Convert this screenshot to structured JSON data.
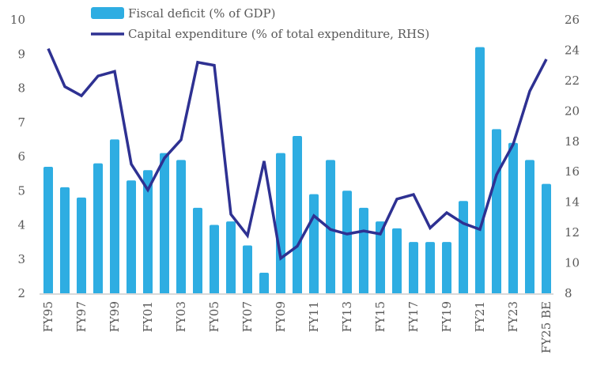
{
  "chart_data": {
    "type": "bar+line",
    "title": "",
    "categories": [
      "FY95",
      "FY96",
      "FY97",
      "FY98",
      "FY99",
      "FY00",
      "FY01",
      "FY02",
      "FY03",
      "FY04",
      "FY05",
      "FY06",
      "FY07",
      "FY08",
      "FY09",
      "FY10",
      "FY11",
      "FY12",
      "FY13",
      "FY14",
      "FY15",
      "FY16",
      "FY17",
      "FY18",
      "FY19",
      "FY20",
      "FY21",
      "FY22",
      "FY23",
      "FY24",
      "FY25 BE"
    ],
    "x_tick_labels": [
      "FY95",
      "FY97",
      "FY99",
      "FY01",
      "FY03",
      "FY05",
      "FY07",
      "FY09",
      "FY11",
      "FY13",
      "FY15",
      "FY17",
      "FY19",
      "FY21",
      "FY23",
      "FY25 BE"
    ],
    "series": [
      {
        "name": "Fiscal deficit (% of GDP)",
        "type": "bar",
        "axis": "left",
        "color": "#2EADE2",
        "values": [
          5.7,
          5.1,
          4.8,
          5.8,
          6.5,
          5.3,
          5.6,
          6.1,
          5.9,
          4.5,
          4.0,
          4.1,
          3.4,
          2.6,
          6.1,
          6.6,
          4.9,
          5.9,
          5.0,
          4.5,
          4.1,
          3.9,
          3.5,
          3.5,
          3.5,
          4.7,
          9.2,
          6.8,
          6.4,
          5.9,
          5.2
        ]
      },
      {
        "name": "Capital expenditure (% of total expenditure, RHS)",
        "type": "line",
        "axis": "right",
        "color": "#2E3192",
        "values": [
          24.1,
          21.6,
          21.0,
          22.3,
          22.6,
          16.5,
          14.8,
          16.9,
          18.1,
          23.2,
          23.0,
          13.2,
          11.8,
          16.7,
          10.3,
          11.1,
          13.1,
          12.2,
          11.9,
          12.1,
          11.9,
          14.2,
          14.5,
          12.3,
          13.3,
          12.6,
          12.2,
          15.8,
          17.8,
          21.3,
          23.4
        ]
      }
    ],
    "y_left": {
      "label": "",
      "range": [
        2,
        10
      ],
      "ticks": [
        2,
        3,
        4,
        5,
        6,
        7,
        8,
        9,
        10
      ]
    },
    "y_right": {
      "label": "",
      "range": [
        8,
        26
      ],
      "ticks": [
        8,
        10,
        12,
        14,
        16,
        18,
        20,
        22,
        24,
        26
      ]
    },
    "xlabel": "",
    "grid": false,
    "legend": {
      "placement": "top-center",
      "entries": [
        "Fiscal deficit (% of GDP)",
        "Capital expenditure (% of total expenditure, RHS)"
      ]
    }
  }
}
